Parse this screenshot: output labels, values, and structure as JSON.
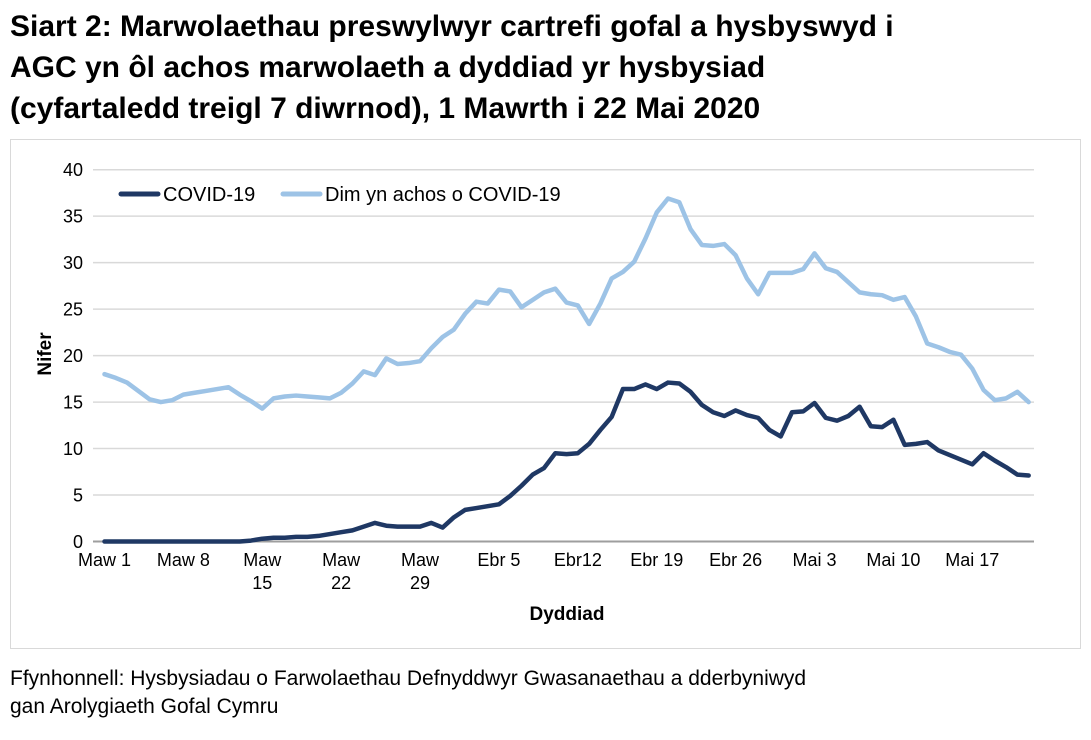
{
  "title": {
    "line1": "Siart 2: Marwolaethau preswylwyr cartrefi gofal a hysbyswyd i",
    "line2": "AGC yn ôl achos marwolaeth a dyddiad yr hysbysiad",
    "line3": "(cyfartaledd treigl 7 diwrnod), 1 Mawrth i 22 Mai 2020"
  },
  "source": {
    "line1": "Ffynhonnell: Hysbysiadau o Farwolaethau Defnyddwyr Gwasanaethau a dderbyniwyd",
    "line2": "gan Arolygiaeth Gofal Cymru"
  },
  "colors": {
    "gridline": "#d9d9d9",
    "axis_line": "#9e9e9e",
    "panel_border": "#d9d9d9",
    "text": "#000000"
  },
  "chart_data": {
    "type": "line",
    "title": "Siart 2: Marwolaethau preswylwyr cartrefi gofal a hysbyswyd i AGC yn ôl achos marwolaeth a dyddiad yr hysbysiad (cyfartaledd treigl 7 diwrnod), 1 Mawrth i 22 Mai 2020",
    "xlabel": "Dyddiad",
    "ylabel": "Nifer",
    "ylim": [
      0,
      40
    ],
    "ytick_step": 5,
    "grid": true,
    "legend_position": "top-left",
    "x_start": "1 Mawrth 2020",
    "x_end": "22 Mai 2020",
    "x_points": 83,
    "x_tick_labels": [
      {
        "day": 0,
        "line1": "Maw 1"
      },
      {
        "day": 7,
        "line1": "Maw 8"
      },
      {
        "day": 14,
        "line1": "Maw",
        "line2": "15"
      },
      {
        "day": 21,
        "line1": "Maw",
        "line2": "22"
      },
      {
        "day": 28,
        "line1": "Maw",
        "line2": "29"
      },
      {
        "day": 35,
        "line1": "Ebr 5"
      },
      {
        "day": 42,
        "line1": "Ebr12"
      },
      {
        "day": 49,
        "line1": "Ebr 19"
      },
      {
        "day": 56,
        "line1": "Ebr 26"
      },
      {
        "day": 63,
        "line1": "Mai 3"
      },
      {
        "day": 70,
        "line1": "Mai 10"
      },
      {
        "day": 77,
        "line1": "Mai 17"
      }
    ],
    "series": [
      {
        "name": "COVID-19",
        "color": "#1f3864",
        "values": [
          0,
          0,
          0,
          0,
          0,
          0,
          0,
          0,
          0,
          0,
          0,
          0,
          0,
          0.1,
          0.3,
          0.4,
          0.4,
          0.5,
          0.5,
          0.6,
          0.8,
          1.0,
          1.2,
          1.6,
          2.0,
          1.7,
          1.6,
          1.6,
          1.6,
          2.0,
          1.5,
          2.6,
          3.4,
          3.6,
          3.8,
          4.0,
          4.9,
          6.0,
          7.2,
          7.9,
          9.5,
          9.4,
          9.5,
          10.5,
          12.0,
          13.4,
          16.4,
          16.4,
          16.9,
          16.4,
          17.1,
          17.0,
          16.1,
          14.7,
          13.9,
          13.5,
          14.1,
          13.6,
          13.3,
          12.0,
          11.3,
          13.9,
          14.0,
          14.9,
          13.3,
          13.0,
          13.5,
          14.5,
          12.4,
          12.3,
          13.1,
          10.4,
          10.5,
          10.7,
          9.8,
          9.3,
          8.8,
          8.3,
          9.5,
          8.7,
          8.0,
          7.2,
          7.1
        ]
      },
      {
        "name": "Dim yn achos o COVID-19",
        "color": "#9dc3e6",
        "values": [
          18.0,
          17.6,
          17.1,
          16.2,
          15.3,
          15.0,
          15.2,
          15.8,
          16.0,
          16.2,
          16.4,
          16.6,
          15.8,
          15.1,
          14.3,
          15.4,
          15.6,
          15.7,
          15.6,
          15.5,
          15.4,
          16.0,
          17.0,
          18.3,
          17.9,
          19.7,
          19.1,
          19.2,
          19.4,
          20.8,
          22.0,
          22.8,
          24.5,
          25.8,
          25.6,
          27.1,
          26.9,
          25.2,
          26.0,
          26.8,
          27.2,
          25.7,
          25.4,
          23.4,
          25.6,
          28.3,
          29.0,
          30.1,
          32.6,
          35.4,
          36.9,
          36.5,
          33.6,
          31.9,
          31.8,
          32.0,
          30.8,
          28.3,
          26.6,
          28.9,
          28.9,
          28.9,
          29.3,
          31.0,
          29.4,
          29.0,
          27.9,
          26.8,
          26.6,
          26.5,
          26.0,
          26.3,
          24.2,
          21.3,
          20.9,
          20.4,
          20.1,
          18.6,
          16.3,
          15.2,
          15.4,
          16.1,
          15.0
        ]
      }
    ]
  }
}
